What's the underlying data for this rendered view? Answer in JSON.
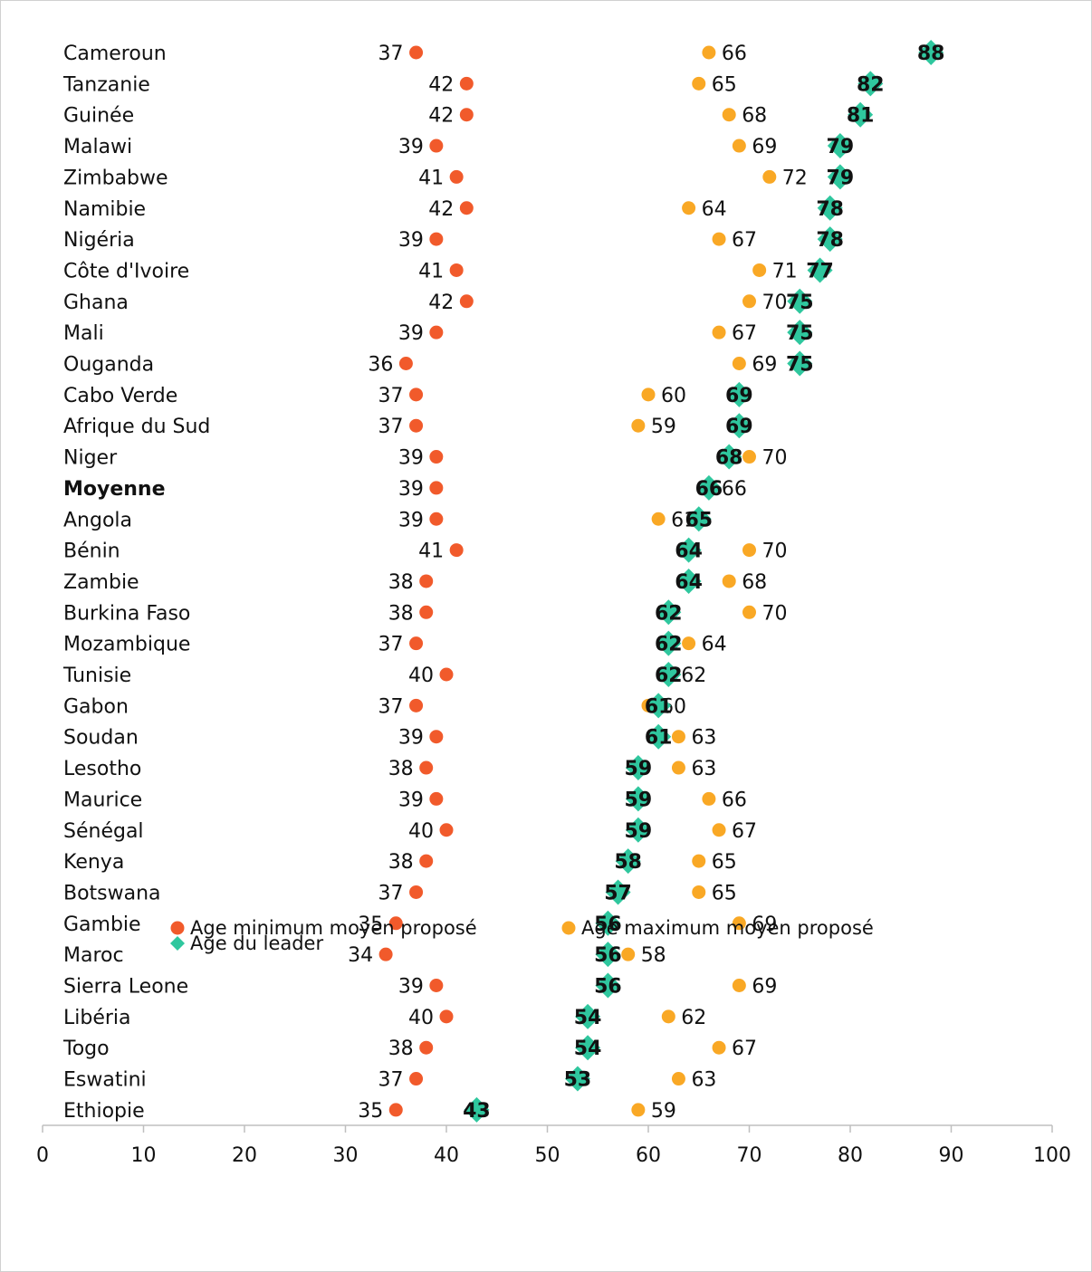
{
  "chart_data": {
    "type": "dot",
    "categories": [
      "Cameroun",
      "Tanzanie",
      "Guinée",
      "Malawi",
      "Zimbabwe",
      "Namibie",
      "Nigéria",
      "Côte d'Ivoire",
      "Ghana",
      "Mali",
      "Ouganda",
      "Cabo Verde",
      "Afrique du Sud",
      "Niger",
      "Moyenne",
      "Angola",
      "Bénin",
      "Zambie",
      "Burkina Faso",
      "Mozambique",
      "Tunisie",
      "Gabon",
      "Soudan",
      "Lesotho",
      "Maurice",
      "Sénégal",
      "Kenya",
      "Botswana",
      "Gambie",
      "Maroc",
      "Sierra Leone",
      "Libéria",
      "Togo",
      "Eswatini",
      "Ethiopie"
    ],
    "bold_categories": [
      14
    ],
    "series": [
      {
        "name": "Age minimum moyen proposé",
        "color": "#f15a2b",
        "marker": "circle",
        "label_side": "left",
        "values": [
          37,
          42,
          42,
          39,
          41,
          42,
          39,
          41,
          42,
          39,
          36,
          37,
          37,
          39,
          39,
          39,
          41,
          38,
          38,
          37,
          40,
          37,
          39,
          38,
          39,
          40,
          38,
          37,
          35,
          34,
          39,
          40,
          38,
          37,
          35
        ]
      },
      {
        "name": "Age maximum moyen proposé",
        "color": "#f9a825",
        "marker": "circle",
        "label_side": "right",
        "values": [
          66,
          65,
          68,
          69,
          72,
          64,
          67,
          71,
          70,
          67,
          69,
          60,
          59,
          70,
          66,
          61,
          70,
          68,
          70,
          64,
          62,
          60,
          63,
          63,
          66,
          67,
          65,
          65,
          69,
          58,
          69,
          62,
          67,
          63,
          59
        ]
      },
      {
        "name": "Age du leader",
        "color": "#2fc79e",
        "marker": "diamond",
        "label_side": "center",
        "values": [
          88,
          82,
          81,
          79,
          79,
          78,
          78,
          77,
          75,
          75,
          75,
          69,
          69,
          68,
          66,
          65,
          64,
          64,
          62,
          62,
          62,
          61,
          61,
          59,
          59,
          59,
          58,
          57,
          56,
          56,
          56,
          54,
          54,
          53,
          43
        ]
      }
    ],
    "xlim": [
      0,
      100
    ],
    "xticks": [
      0,
      10,
      20,
      30,
      40,
      50,
      60,
      70,
      80,
      90,
      100
    ]
  }
}
